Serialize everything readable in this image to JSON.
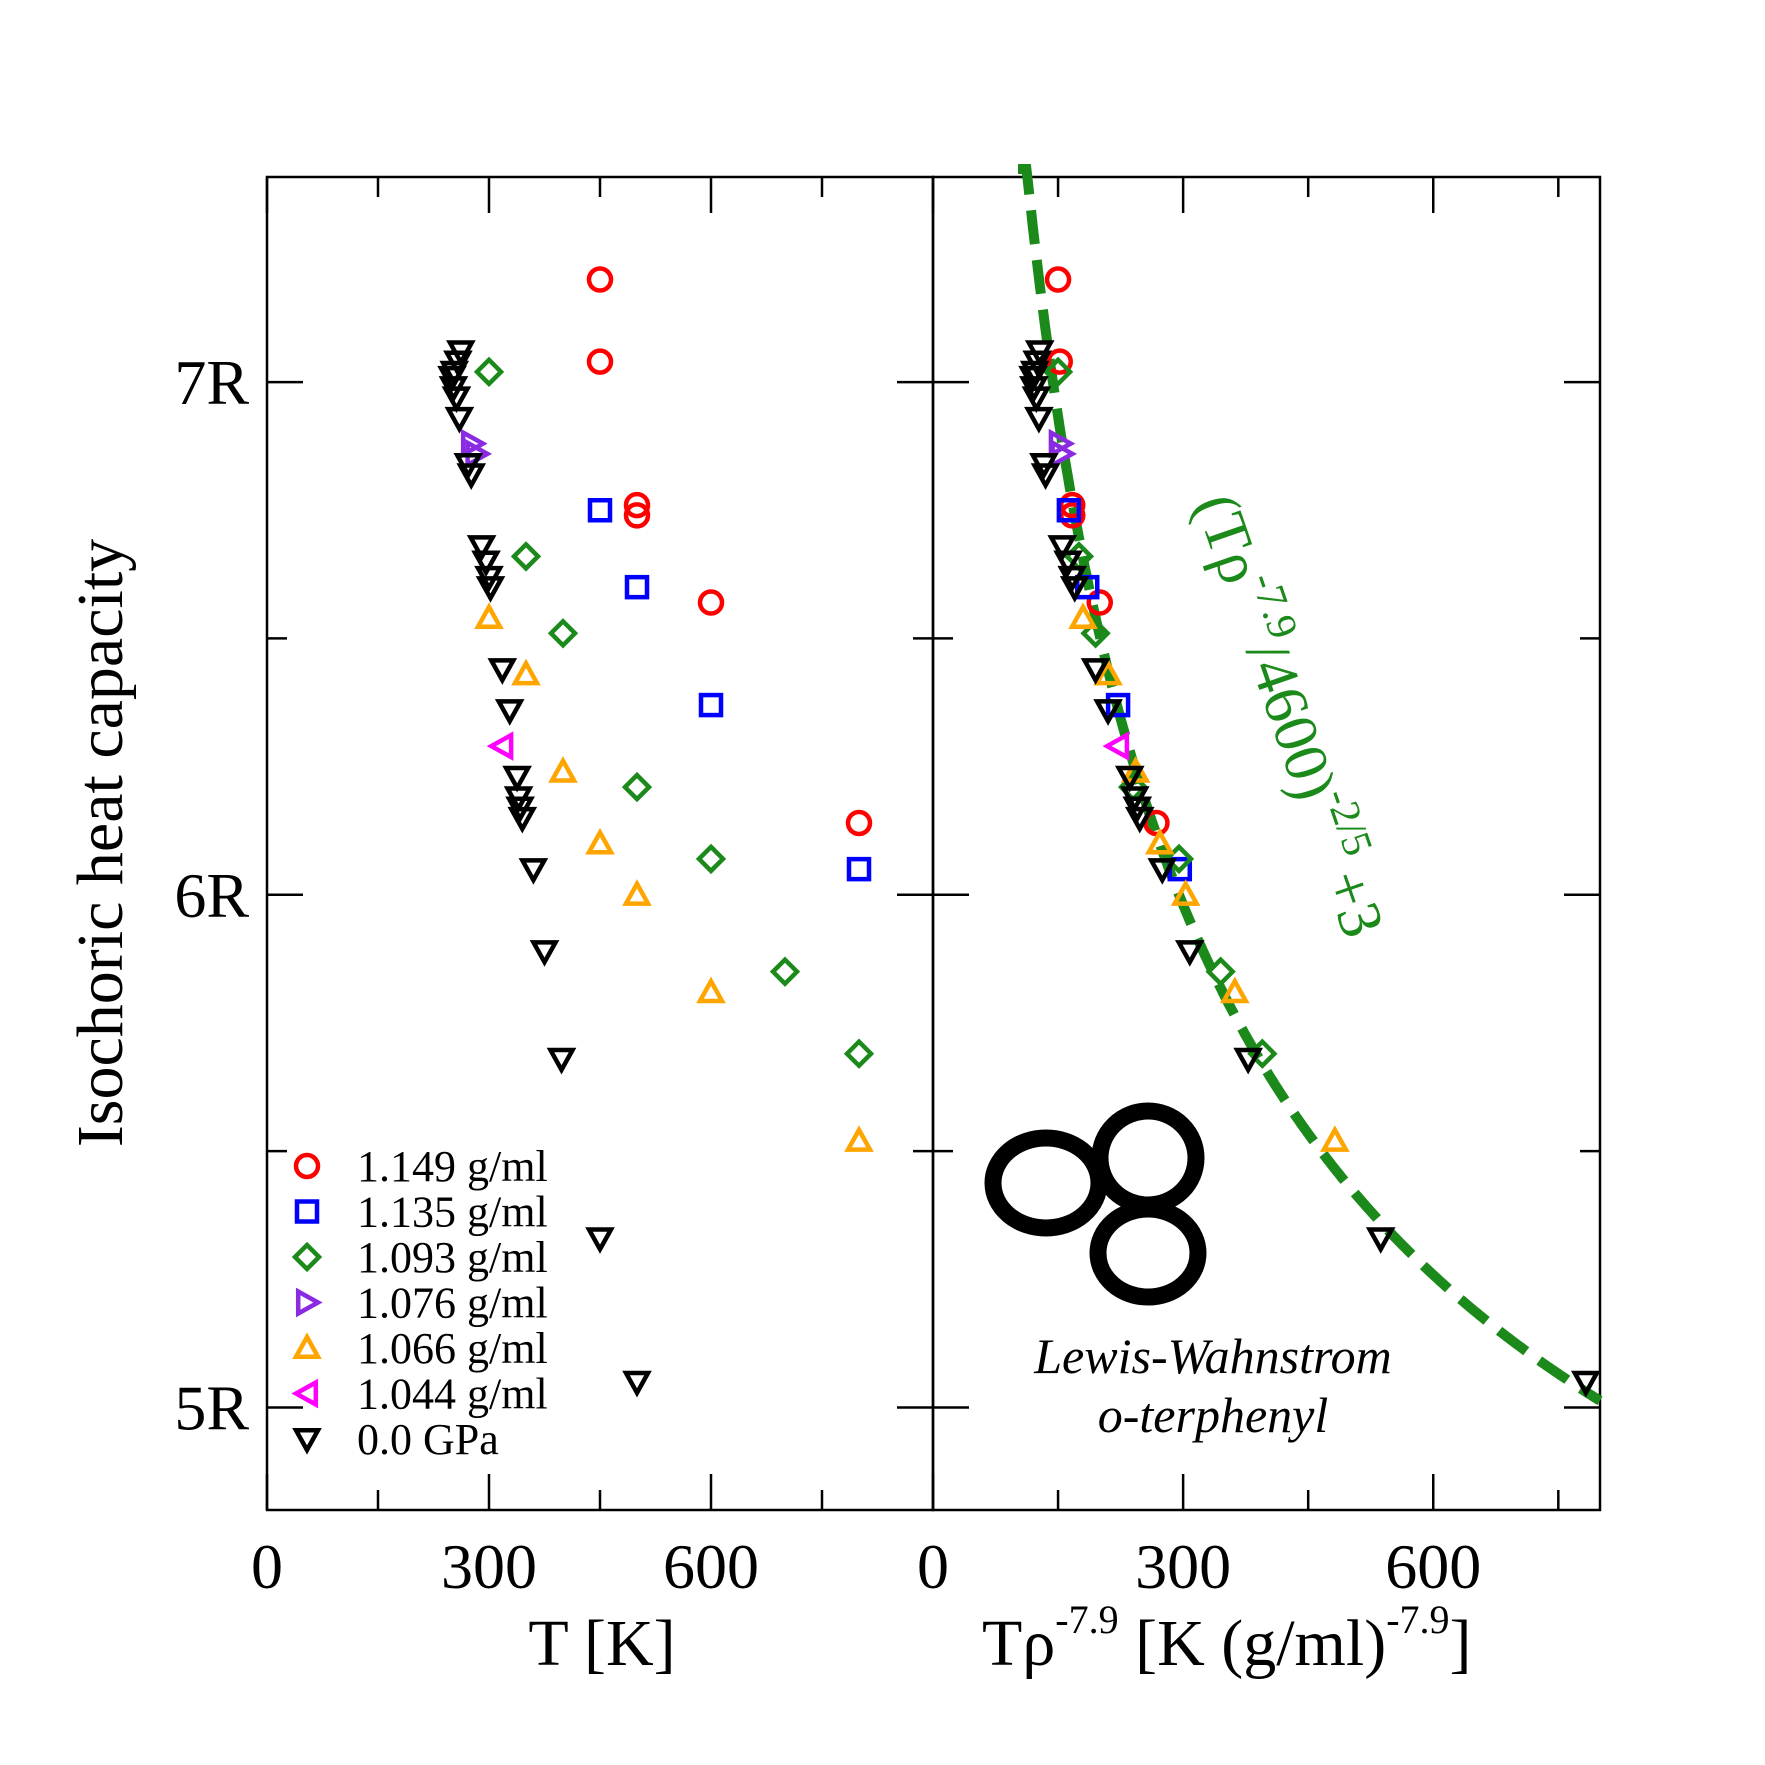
{
  "chart_data": [
    {
      "type": "scatter",
      "panel": "left",
      "xlabel": "T [K]",
      "ylabel": "Isochoric heat capacity",
      "xlim": [
        0,
        900
      ],
      "ylim": [
        4.8,
        7.4
      ],
      "x_ticks": [
        {
          "value": 0,
          "label": "0"
        },
        {
          "value": 300,
          "label": "300"
        },
        {
          "value": 600,
          "label": "600"
        }
      ],
      "y_ticks": [
        {
          "value": 5,
          "label": "5R"
        },
        {
          "value": 6,
          "label": "6R"
        },
        {
          "value": 7,
          "label": "7R"
        }
      ],
      "legend_position": "bottom-left",
      "series": [
        {
          "name": "1.149 g/ml",
          "color": "#ff0000",
          "marker": "circle",
          "points": [
            [
              450,
              7.2
            ],
            [
              450,
              7.04
            ],
            [
              500,
              6.76
            ],
            [
              500,
              6.74
            ],
            [
              600,
              6.57
            ],
            [
              800,
              6.14
            ]
          ]
        },
        {
          "name": "1.135 g/ml",
          "color": "#0000ff",
          "marker": "square",
          "points": [
            [
              450,
              6.75
            ],
            [
              500,
              6.6
            ],
            [
              600,
              6.37
            ],
            [
              800,
              6.05
            ]
          ]
        },
        {
          "name": "1.093 g/ml",
          "color": "#1b8a1b",
          "marker": "diamond",
          "points": [
            [
              300,
              7.02
            ],
            [
              350,
              6.66
            ],
            [
              400,
              6.51
            ],
            [
              500,
              6.21
            ],
            [
              600,
              6.07
            ],
            [
              700,
              5.85
            ],
            [
              800,
              5.69
            ]
          ]
        },
        {
          "name": "1.076 g/ml",
          "color": "#8a2be2",
          "marker": "triangle-right",
          "points": [
            [
              277,
              6.88
            ],
            [
              283,
              6.86
            ]
          ]
        },
        {
          "name": "1.066 g/ml",
          "color": "#ffa500",
          "marker": "triangle-up",
          "points": [
            [
              300,
              6.54
            ],
            [
              350,
              6.43
            ],
            [
              400,
              6.24
            ],
            [
              450,
              6.1
            ],
            [
              500,
              6.0
            ],
            [
              600,
              5.81
            ],
            [
              800,
              5.52
            ]
          ]
        },
        {
          "name": "1.044 g/ml",
          "color": "#ff00ff",
          "marker": "triangle-left",
          "points": [
            [
              318,
              6.29
            ]
          ]
        },
        {
          "name": "0.0 GPa",
          "color": "#000000",
          "marker": "triangle-down",
          "points": [
            [
              262,
              7.06
            ],
            [
              258,
              7.04
            ],
            [
              253,
              7.02
            ],
            [
              250,
              7.01
            ],
            [
              252,
              6.99
            ],
            [
              256,
              6.97
            ],
            [
              260,
              6.93
            ],
            [
              276,
              6.82
            ],
            [
              272,
              6.84
            ],
            [
              290,
              6.68
            ],
            [
              296,
              6.65
            ],
            [
              300,
              6.62
            ],
            [
              302,
              6.6
            ],
            [
              318,
              6.44
            ],
            [
              328,
              6.36
            ],
            [
              338,
              6.23
            ],
            [
              340,
              6.19
            ],
            [
              342,
              6.17
            ],
            [
              345,
              6.15
            ],
            [
              360,
              6.05
            ],
            [
              375,
              5.89
            ],
            [
              398,
              5.68
            ],
            [
              450,
              5.33
            ],
            [
              500,
              5.05
            ]
          ]
        }
      ]
    },
    {
      "type": "scatter",
      "panel": "right",
      "xlabel": "Tρ",
      "xlabel_sup": "-7.9",
      "xlabel_unit": " [K (g/ml)",
      "xlabel_unit_sup": "-7.9",
      "xlabel_close": "]",
      "xlim": [
        0,
        800
      ],
      "ylim": [
        4.8,
        7.4
      ],
      "x_ticks": [
        {
          "value": 0,
          "label": "0"
        },
        {
          "value": 300,
          "label": "300"
        },
        {
          "value": 600,
          "label": "600"
        }
      ],
      "fit_curve": {
        "label_main": "(Tρ",
        "label_sup1": "-7.9",
        "label_mid": "/4600)",
        "label_sup2": "-2/5",
        "label_end": "+3",
        "color": "#1b8a1b",
        "style": "dashed"
      },
      "molecule_caption_line1": "Lewis-Wahnstrom",
      "molecule_caption_line2": "o-terphenyl",
      "series": [
        {
          "name": "1.149 g/ml",
          "color": "#ff0000",
          "marker": "circle",
          "points": [
            [
              150,
              7.2
            ],
            [
              152,
              7.04
            ],
            [
              167,
              6.76
            ],
            [
              167,
              6.74
            ],
            [
              200,
              6.57
            ],
            [
              268,
              6.14
            ]
          ]
        },
        {
          "name": "1.135 g/ml",
          "color": "#0000ff",
          "marker": "square",
          "points": [
            [
              163,
              6.75
            ],
            [
              185,
              6.6
            ],
            [
              222,
              6.37
            ],
            [
              296,
              6.05
            ]
          ]
        },
        {
          "name": "1.093 g/ml",
          "color": "#1b8a1b",
          "marker": "diamond",
          "points": [
            [
              150,
              7.02
            ],
            [
              175,
              6.66
            ],
            [
              195,
              6.51
            ],
            [
              240,
              6.21
            ],
            [
              295,
              6.07
            ],
            [
              345,
              5.85
            ],
            [
              395,
              5.69
            ]
          ]
        },
        {
          "name": "1.076 g/ml",
          "color": "#8a2be2",
          "marker": "triangle-right",
          "points": [
            [
              152,
              6.88
            ],
            [
              154,
              6.86
            ]
          ]
        },
        {
          "name": "1.066 g/ml",
          "color": "#ffa500",
          "marker": "triangle-up",
          "points": [
            [
              180,
              6.54
            ],
            [
              210,
              6.43
            ],
            [
              243,
              6.24
            ],
            [
              272,
              6.1
            ],
            [
              303,
              6.0
            ],
            [
              362,
              5.81
            ],
            [
              482,
              5.52
            ]
          ]
        },
        {
          "name": "1.044 g/ml",
          "color": "#ff00ff",
          "marker": "triangle-left",
          "points": [
            [
              222,
              6.29
            ]
          ]
        },
        {
          "name": "0.0 GPa",
          "color": "#000000",
          "marker": "triangle-down",
          "points": [
            [
              128,
              7.06
            ],
            [
              125,
              7.04
            ],
            [
              122,
              7.02
            ],
            [
              120,
              7.01
            ],
            [
              121,
              6.99
            ],
            [
              124,
              6.97
            ],
            [
              127,
              6.93
            ],
            [
              135,
              6.82
            ],
            [
              133,
              6.84
            ],
            [
              155,
              6.68
            ],
            [
              162,
              6.65
            ],
            [
              167,
              6.62
            ],
            [
              170,
              6.6
            ],
            [
              195,
              6.44
            ],
            [
              210,
              6.36
            ],
            [
              236,
              6.23
            ],
            [
              242,
              6.19
            ],
            [
              245,
              6.17
            ],
            [
              248,
              6.15
            ],
            [
              275,
              6.05
            ],
            [
              308,
              5.89
            ],
            [
              378,
              5.68
            ],
            [
              537,
              5.33
            ],
            [
              783,
              5.05
            ]
          ]
        }
      ]
    }
  ]
}
